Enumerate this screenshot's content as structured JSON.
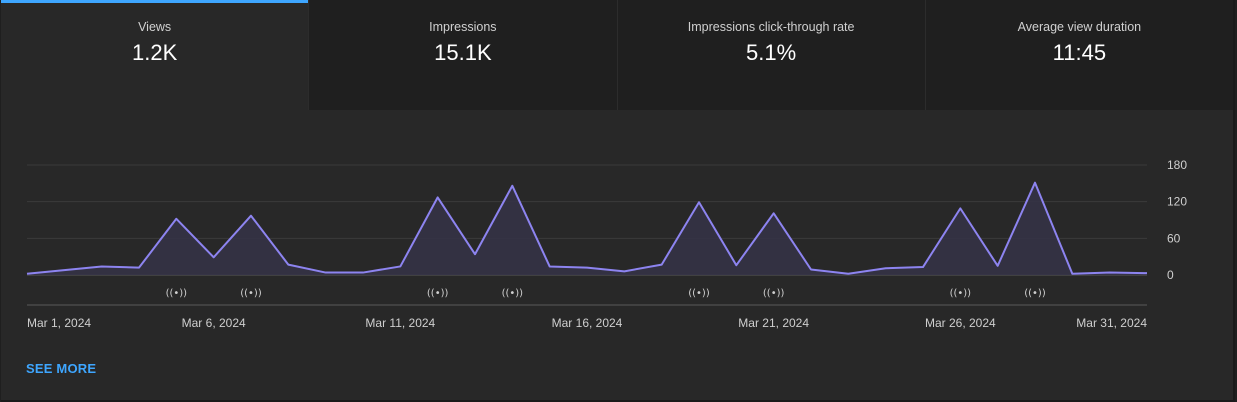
{
  "tabs": [
    {
      "label": "Views",
      "value": "1.2K",
      "active": true
    },
    {
      "label": "Impressions",
      "value": "15.1K",
      "active": false
    },
    {
      "label": "Impressions click-through rate",
      "value": "5.1%",
      "active": false
    },
    {
      "label": "Average view duration",
      "value": "11:45",
      "active": false
    }
  ],
  "see_more_label": "SEE MORE",
  "colors": {
    "accent": "#3ea6ff",
    "line": "#8d84f0",
    "fill": "#353247",
    "background": "#282828"
  },
  "chart_data": {
    "type": "area",
    "title": "",
    "xlabel": "",
    "ylabel": "",
    "ylim": [
      0,
      180
    ],
    "y_ticks": [
      "180",
      "120",
      "60",
      "0"
    ],
    "x_tick_labels": [
      "Mar 1, 2024",
      "Mar 6, 2024",
      "Mar 11, 2024",
      "Mar 16, 2024",
      "Mar 21, 2024",
      "Mar 26, 2024",
      "Mar 31, 2024"
    ],
    "grid": true,
    "series": [
      {
        "x": [
          "Mar 1",
          "Mar 2",
          "Mar 3",
          "Mar 4",
          "Mar 5",
          "Mar 6",
          "Mar 7",
          "Mar 8",
          "Mar 9",
          "Mar 10",
          "Mar 11",
          "Mar 12",
          "Mar 13",
          "Mar 14",
          "Mar 15",
          "Mar 16",
          "Mar 17",
          "Mar 18",
          "Mar 19",
          "Mar 20",
          "Mar 21",
          "Mar 22",
          "Mar 23",
          "Mar 24",
          "Mar 25",
          "Mar 26",
          "Mar 27",
          "Mar 28",
          "Mar 29",
          "Mar 30",
          "Mar 31"
        ],
        "values": [
          2,
          8,
          14,
          12,
          92,
          29,
          97,
          17,
          4,
          4,
          14,
          127,
          34,
          146,
          14,
          12,
          6,
          17,
          119,
          16,
          101,
          9,
          2,
          11,
          13,
          109,
          15,
          151,
          2,
          4,
          3
        ]
      }
    ],
    "live_markers_at": [
      "Mar 5",
      "Mar 7",
      "Mar 12",
      "Mar 14",
      "Mar 19",
      "Mar 21",
      "Mar 26",
      "Mar 28"
    ],
    "live_marker_glyph": "((•))"
  }
}
